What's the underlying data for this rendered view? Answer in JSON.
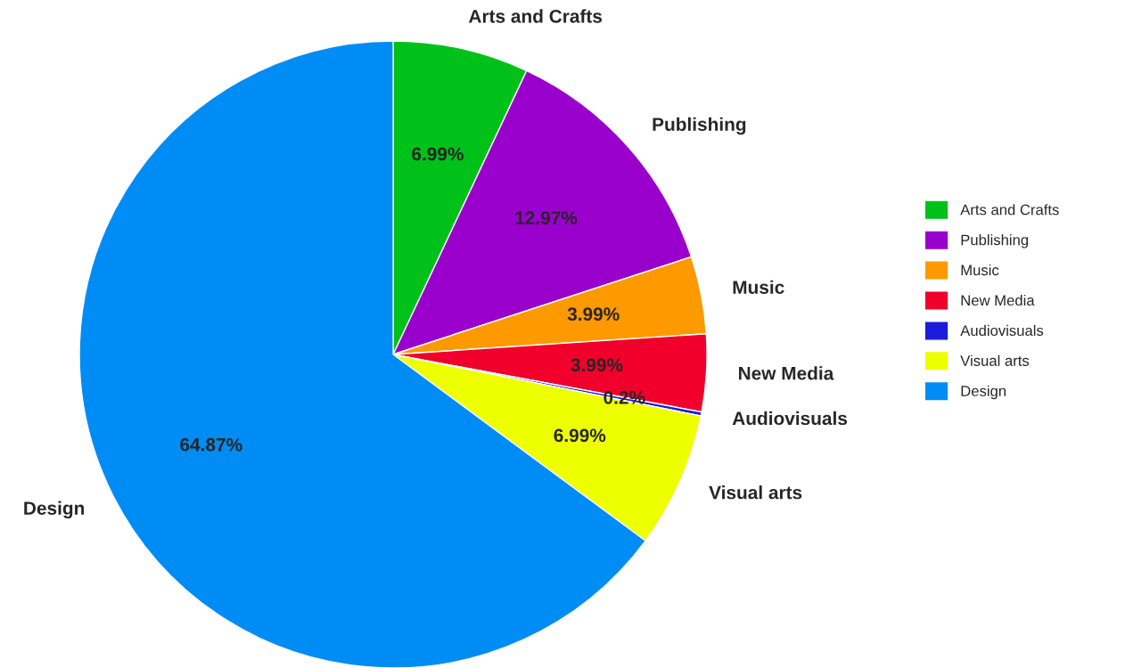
{
  "chart_data": {
    "type": "pie",
    "categories": [
      "Arts and Crafts",
      "Publishing",
      "Music",
      "New Media",
      "Audiovisuals",
      "Visual arts",
      "Design"
    ],
    "values": [
      6.99,
      12.97,
      3.99,
      3.99,
      0.2,
      6.99,
      64.87
    ],
    "colors": [
      "#00c11a",
      "#9900cc",
      "#ff9900",
      "#f0002a",
      "#1c1cdc",
      "#eeff00",
      "#008cf5"
    ],
    "value_labels": [
      "6.99%",
      "12.97%",
      "3.99%",
      "3.99%",
      "0.2%",
      "6.99%",
      "64.87%"
    ],
    "legend": "right"
  }
}
